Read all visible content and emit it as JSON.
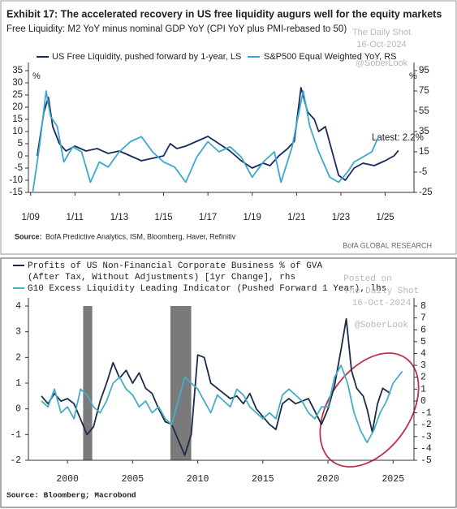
{
  "chart_data": [
    {
      "type": "line",
      "title": "Exhibit 17: The accelerated recovery in US free liquidity augurs well for the equity markets",
      "subtitle": "Free Liquidity: M2 YoY minus nominal GDP YoY (CPI YoY plus PMI-rebased to 50)",
      "ylabel": "%",
      "y2label": "%",
      "xlim": [
        2008.9,
        2026.3
      ],
      "xticks": [
        {
          "value": 2009,
          "label": "1/09"
        },
        {
          "value": 2011,
          "label": "1/11"
        },
        {
          "value": 2013,
          "label": "1/13"
        },
        {
          "value": 2015,
          "label": "1/15"
        },
        {
          "value": 2017,
          "label": "1/17"
        },
        {
          "value": 2019,
          "label": "1/19"
        },
        {
          "value": 2021,
          "label": "1/21"
        },
        {
          "value": 2023,
          "label": "1/23"
        },
        {
          "value": 2025,
          "label": "1/25"
        }
      ],
      "ylim": [
        -15,
        35
      ],
      "yticks": [
        -15,
        -10,
        -5,
        0,
        5,
        10,
        15,
        20,
        25,
        30,
        35
      ],
      "y2lim": [
        -25,
        95
      ],
      "y2ticks": [
        -25,
        -5,
        15,
        35,
        55,
        75,
        95
      ],
      "series": [
        {
          "name": "US Free Liquidity, pushed forward by 1-year, LS",
          "color": "#1b2a5e",
          "x": [
            2009.3,
            2009.6,
            2009.8,
            2010.0,
            2010.3,
            2010.6,
            2011.0,
            2011.5,
            2012.0,
            2012.5,
            2013.0,
            2013.5,
            2014.0,
            2014.5,
            2015.0,
            2015.3,
            2015.6,
            2016.0,
            2016.5,
            2017.0,
            2017.5,
            2018.0,
            2018.5,
            2019.0,
            2019.5,
            2019.8,
            2020.2,
            2020.6,
            2020.9,
            2021.2,
            2021.5,
            2021.8,
            2022.0,
            2022.3,
            2022.6,
            2022.9,
            2023.2,
            2023.6,
            2024.0,
            2024.5,
            2025.0,
            2025.4,
            2025.6
          ],
          "values": [
            0,
            18,
            24,
            12,
            5,
            2,
            4,
            2,
            3,
            1,
            2,
            0,
            -2,
            -1,
            0,
            5,
            3,
            4,
            6,
            8,
            5,
            2,
            -2,
            -5,
            -3,
            -4,
            0,
            3,
            6,
            28,
            18,
            15,
            10,
            12,
            2,
            -8,
            -10,
            -5,
            -3,
            -4,
            -2,
            0,
            2.2
          ]
        },
        {
          "name": "S&P500 Equal Weighted YoY, RS",
          "color": "#3aa9cf",
          "axis": "y2",
          "x": [
            2009.1,
            2009.4,
            2009.7,
            2009.9,
            2010.2,
            2010.5,
            2010.9,
            2011.3,
            2011.7,
            2012.1,
            2012.5,
            2013.0,
            2013.5,
            2014.0,
            2014.5,
            2015.0,
            2015.5,
            2016.0,
            2016.5,
            2017.0,
            2017.5,
            2018.0,
            2018.5,
            2019.0,
            2019.5,
            2020.0,
            2020.3,
            2020.8,
            2021.3,
            2021.6,
            2022.0,
            2022.5,
            2022.9,
            2023.3,
            2023.6,
            2024.0,
            2024.4,
            2024.7
          ],
          "values": [
            -24,
            20,
            75,
            50,
            40,
            5,
            20,
            15,
            -15,
            5,
            0,
            15,
            25,
            30,
            15,
            5,
            0,
            -15,
            10,
            25,
            15,
            20,
            10,
            -10,
            5,
            15,
            -15,
            20,
            75,
            40,
            15,
            -10,
            -15,
            -5,
            5,
            10,
            15,
            30
          ]
        }
      ],
      "annotation": "Latest: 2.2%",
      "source_label": "Source:",
      "source": "BofA Predictive Analytics, ISM, Bloomberg, Haver, Refinitiv",
      "credit": "BofA GLOBAL RESEARCH",
      "watermarks": [
        "The Daily Shot",
        "16-Oct-2024",
        "@SoberLook"
      ]
    },
    {
      "type": "line",
      "xlim": [
        1997,
        2026.6
      ],
      "xticks": [
        2000,
        2005,
        2010,
        2015,
        2020,
        2025
      ],
      "ylim": [
        -2,
        4
      ],
      "yticks": [
        -2,
        -1,
        0,
        1,
        2,
        3,
        4
      ],
      "y2lim": [
        -5,
        8
      ],
      "y2ticks": [
        -5,
        -4,
        -3,
        -2,
        -1,
        0,
        1,
        2,
        3,
        4,
        5,
        6,
        7,
        8
      ],
      "shaded_periods": [
        [
          2001.2,
          2001.9
        ],
        [
          2007.9,
          2009.5
        ]
      ],
      "series": [
        {
          "name": "Profits of US Non-Financial Corporate Business % of GVA",
          "name_continued": "(After Tax, Without Adjustments) [1yr Change], rhs",
          "color": "#1c2a4a",
          "x": [
            1998,
            1998.5,
            1999,
            1999.5,
            2000,
            2000.5,
            2001,
            2001.5,
            2002,
            2002.5,
            2003,
            2003.5,
            2004,
            2004.5,
            2005,
            2005.5,
            2006,
            2006.5,
            2007,
            2007.5,
            2008,
            2008.5,
            2009,
            2009.5,
            2010,
            2010.5,
            2011,
            2011.5,
            2012,
            2012.5,
            2013,
            2013.5,
            2014,
            2014.5,
            2015,
            2015.5,
            2016,
            2016.5,
            2017,
            2017.5,
            2018,
            2018.5,
            2019,
            2019.5,
            2020,
            2020.5,
            2021,
            2021.4,
            2021.8,
            2022.2,
            2022.7,
            2023,
            2023.4,
            2023.8,
            2024.2,
            2024.8
          ],
          "values": [
            0.5,
            0.2,
            0.6,
            0.3,
            0.4,
            0.2,
            -0.4,
            -1.0,
            -0.7,
            0.3,
            1.0,
            1.8,
            1.2,
            1.5,
            1.0,
            1.4,
            0.8,
            0.6,
            0.0,
            -0.5,
            -0.6,
            -1.2,
            -1.8,
            -1.0,
            2.1,
            2.0,
            1.0,
            0.8,
            0.6,
            0.4,
            0.5,
            0.2,
            0.6,
            0.0,
            -0.3,
            -0.6,
            -0.8,
            0.2,
            0.4,
            0.2,
            0.3,
            0.4,
            -0.1,
            -0.6,
            0.0,
            0.9,
            2.3,
            3.5,
            1.5,
            0.8,
            0.5,
            0.0,
            -0.9,
            0.2,
            0.8,
            0.6
          ]
        },
        {
          "name": "G10 Excess Liquidity Leading Indicator (Pushed Forward 1 Year), lhs",
          "color": "#45aec6",
          "axis": "y2",
          "x": [
            1998,
            1998.5,
            1999,
            1999.5,
            2000,
            2000.5,
            2001,
            2001.5,
            2002,
            2002.5,
            2003,
            2003.5,
            2004,
            2004.5,
            2005,
            2005.5,
            2006,
            2006.5,
            2007,
            2007.5,
            2008,
            2008.5,
            2009,
            2009.5,
            2010,
            2010.5,
            2011,
            2011.5,
            2012,
            2012.5,
            2013,
            2013.5,
            2014,
            2014.5,
            2015,
            2015.5,
            2016,
            2016.5,
            2017,
            2017.5,
            2018,
            2018.5,
            2019,
            2019.5,
            2020,
            2020.5,
            2021,
            2021.5,
            2022,
            2022.5,
            2023,
            2023.5,
            2024,
            2024.5,
            2025,
            2025.7
          ],
          "values": [
            0,
            -0.5,
            1,
            -1,
            -0.5,
            -1.5,
            1,
            0.5,
            -0.5,
            -1,
            0,
            1.5,
            2,
            1,
            0.5,
            -0.5,
            0,
            -1,
            -0.5,
            -1.5,
            -2,
            0,
            2,
            1.5,
            1,
            0,
            -1,
            0.5,
            0,
            -0.5,
            1,
            0.5,
            -0.5,
            -1,
            -1.5,
            -1,
            -1.5,
            0.5,
            1,
            0.5,
            0,
            -1,
            -1.5,
            -0.5,
            -0.5,
            2,
            3,
            1.5,
            -1,
            -2.5,
            -3.5,
            -2.5,
            -1,
            0,
            1.5,
            2.5
          ]
        }
      ],
      "source": "Source: Bloomberg; Macrobond",
      "watermarks": [
        "Posted on",
        "The Daily Shot",
        "16-Oct-2024",
        "@SoberLook"
      ]
    }
  ]
}
